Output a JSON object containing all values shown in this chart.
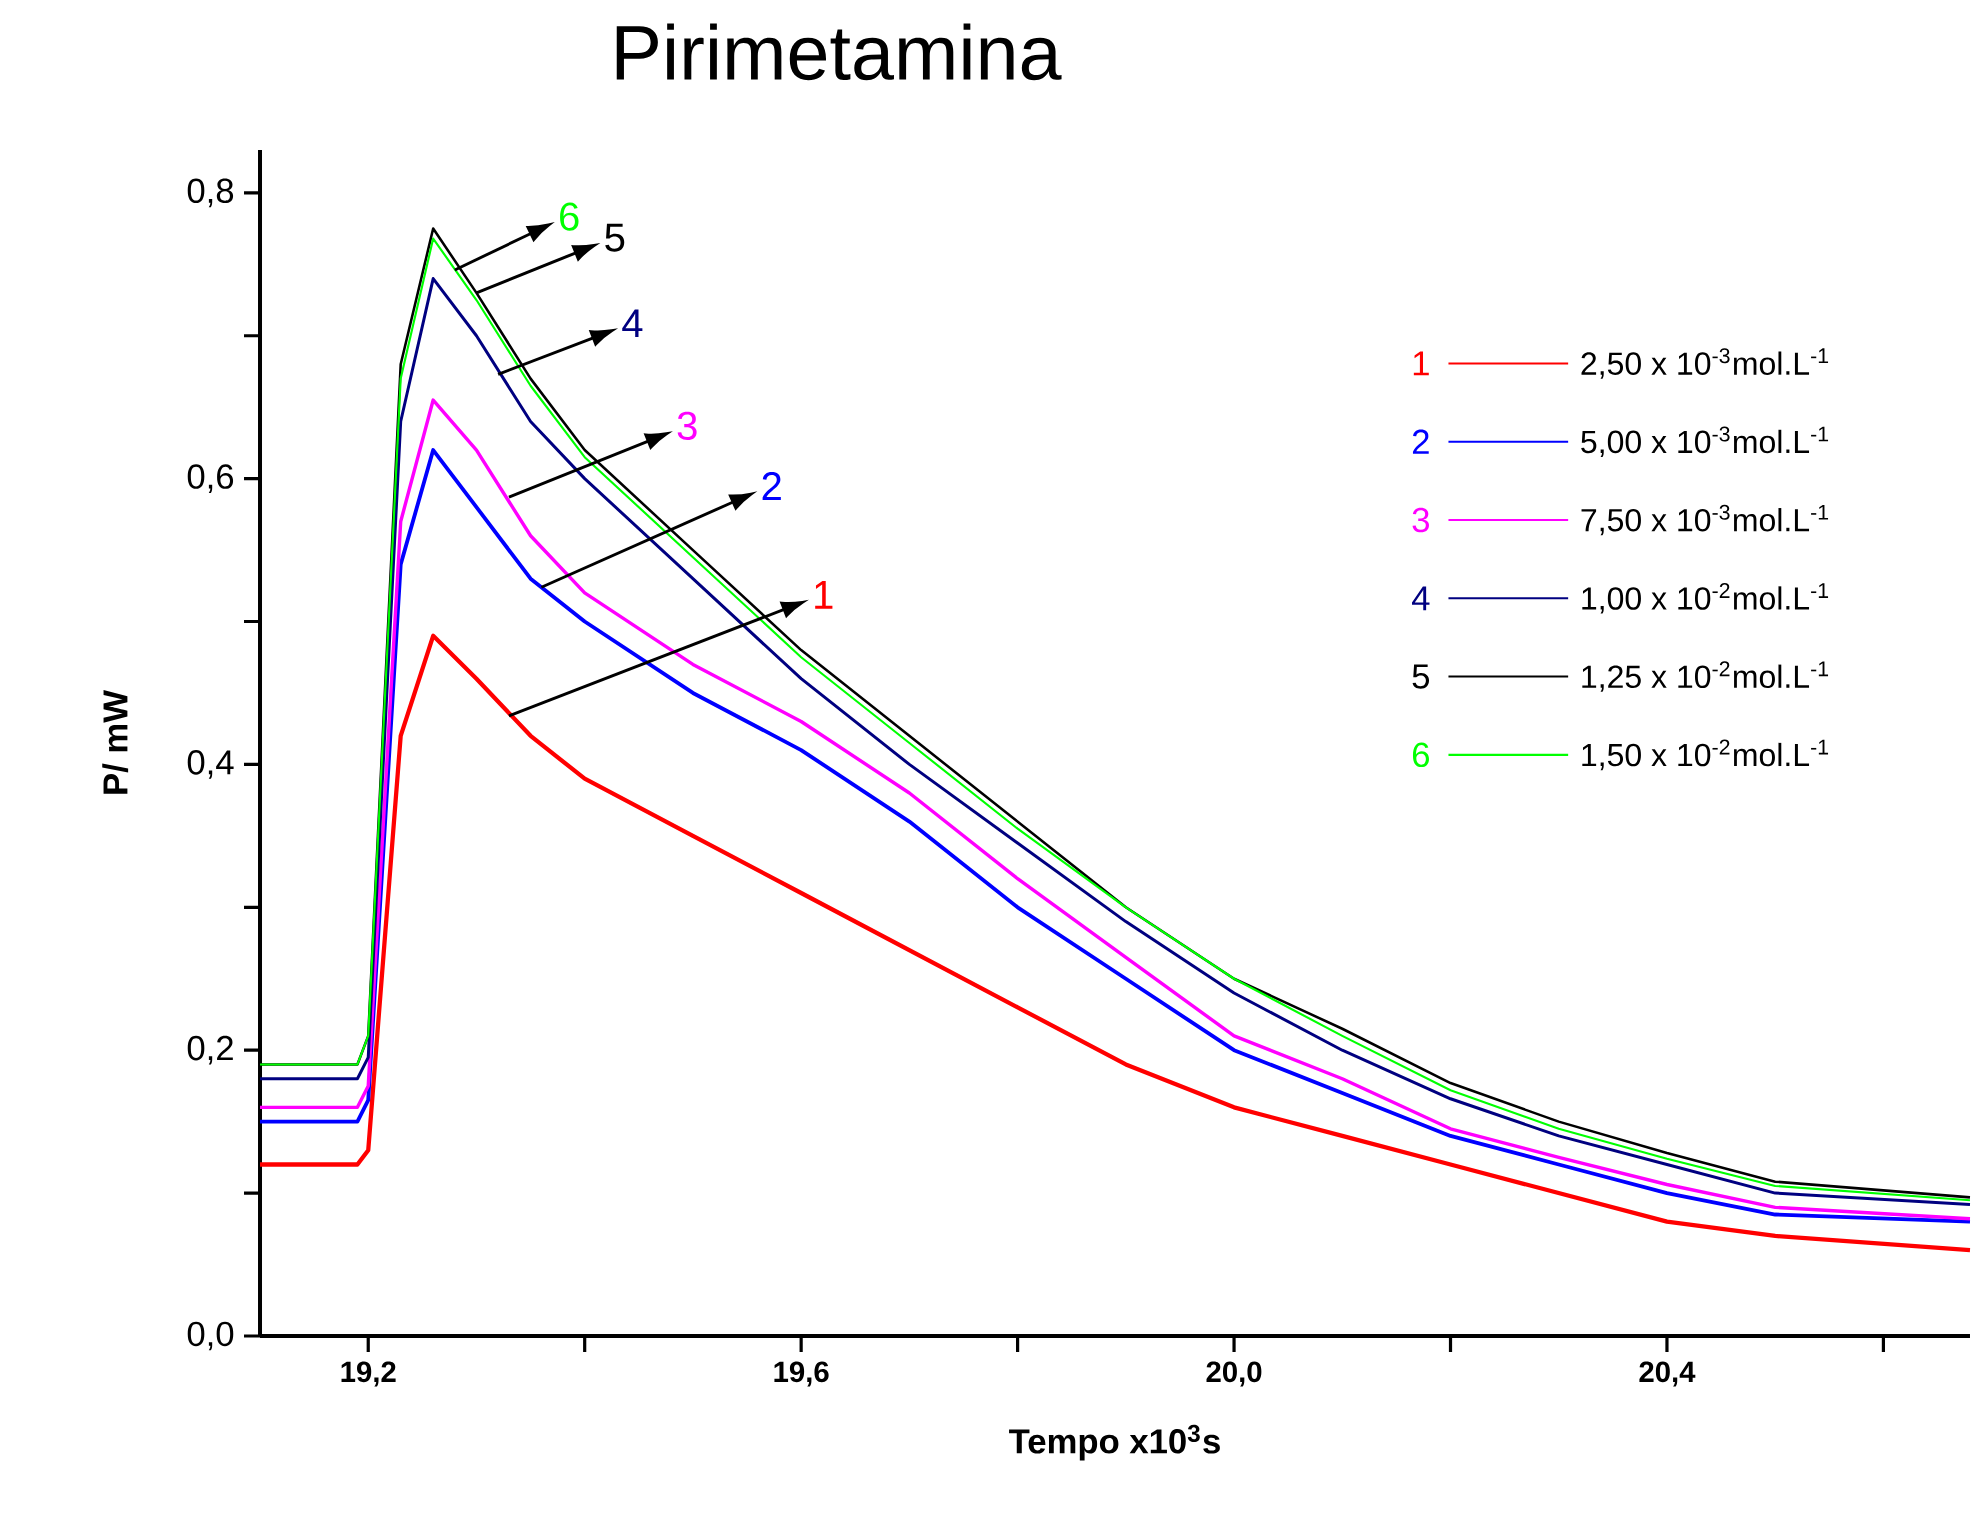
{
  "chart_data": {
    "type": "line",
    "title": "Pirimetamina",
    "xlabel": "Tempo x10$^{3}$s",
    "ylabel": "P/ mW",
    "x": [
      19.1,
      19.19,
      19.2,
      19.23,
      19.26,
      19.3,
      19.35,
      19.4,
      19.5,
      19.6,
      19.7,
      19.8,
      19.9,
      20.0,
      20.1,
      20.2,
      20.3,
      20.4,
      20.5,
      20.68
    ],
    "series": [
      {
        "name": "2,50 x 10$^{-3}$mol.L$^{-1}$",
        "color": "#ff0000",
        "values": [
          0.12,
          0.12,
          0.13,
          0.42,
          0.49,
          0.46,
          0.42,
          0.39,
          0.35,
          0.31,
          0.27,
          0.23,
          0.19,
          0.16,
          0.14,
          0.12,
          0.1,
          0.08,
          0.07,
          0.06
        ]
      },
      {
        "name": "5,00 x 10$^{-3}$mol.L$^{-1}$",
        "color": "#0000ff",
        "values": [
          0.15,
          0.15,
          0.165,
          0.54,
          0.62,
          0.58,
          0.53,
          0.5,
          0.45,
          0.41,
          0.36,
          0.3,
          0.25,
          0.2,
          0.17,
          0.14,
          0.12,
          0.1,
          0.085,
          0.08
        ]
      },
      {
        "name": "7,50 x 10$^{-3}$mol.L$^{-1}$",
        "color": "#ff00ff",
        "values": [
          0.16,
          0.16,
          0.175,
          0.57,
          0.655,
          0.62,
          0.56,
          0.52,
          0.47,
          0.43,
          0.38,
          0.32,
          0.265,
          0.21,
          0.18,
          0.145,
          0.125,
          0.106,
          0.09,
          0.082
        ]
      },
      {
        "name": "1,00 x 10$^{-2}$mol.L$^{-1}$",
        "color": "#000080",
        "values": [
          0.18,
          0.18,
          0.195,
          0.64,
          0.74,
          0.7,
          0.64,
          0.6,
          0.53,
          0.46,
          0.4,
          0.345,
          0.29,
          0.24,
          0.2,
          0.166,
          0.14,
          0.12,
          0.1,
          0.092
        ]
      },
      {
        "name": "1,25 x 10$^{-2}$mol.L$^{-1}$",
        "color": "#000000",
        "values": [
          0.19,
          0.19,
          0.21,
          0.68,
          0.775,
          0.73,
          0.67,
          0.62,
          0.55,
          0.48,
          0.42,
          0.36,
          0.3,
          0.25,
          0.215,
          0.177,
          0.15,
          0.128,
          0.108,
          0.097
        ]
      },
      {
        "name": "1,50 x 10$^{-2}$mol.L$^{-1}$",
        "color": "#00ff00",
        "values": [
          0.19,
          0.19,
          0.21,
          0.67,
          0.768,
          0.725,
          0.665,
          0.615,
          0.545,
          0.475,
          0.415,
          0.355,
          0.3,
          0.25,
          0.21,
          0.172,
          0.145,
          0.124,
          0.105,
          0.095
        ]
      }
    ],
    "annotations": [
      {
        "text": "1",
        "x": 19.33,
        "y": 0.434
      },
      {
        "text": "2",
        "x": 19.36,
        "y": 0.524
      },
      {
        "text": "3",
        "x": 19.33,
        "y": 0.587
      },
      {
        "text": "4",
        "x": 19.32,
        "y": 0.673
      },
      {
        "text": "5",
        "x": 19.3,
        "y": 0.73
      },
      {
        "text": "6",
        "x": 19.28,
        "y": 0.746
      }
    ],
    "xlim": [
      19.1,
      20.68
    ],
    "ylim": [
      0,
      0.83
    ],
    "xticks": [
      {
        "value": 19.2,
        "label": "19,2"
      },
      {
        "value": 19.4,
        "label": null
      },
      {
        "value": 19.6,
        "label": "19,6"
      },
      {
        "value": 19.8,
        "label": null
      },
      {
        "value": 20.0,
        "label": "20,0"
      },
      {
        "value": 20.2,
        "label": null
      },
      {
        "value": 20.4,
        "label": "20,4"
      },
      {
        "value": 20.6,
        "label": null
      }
    ],
    "yticks": [
      {
        "value": 0,
        "label": "0,0"
      },
      {
        "value": 0.1,
        "label": null
      },
      {
        "value": 0.2,
        "label": "0,2"
      },
      {
        "value": 0.3,
        "label": null
      },
      {
        "value": 0.4,
        "label": "0,4"
      },
      {
        "value": 0.5,
        "label": null
      },
      {
        "value": 0.6,
        "label": "0,6"
      },
      {
        "value": 0.7,
        "label": null
      },
      {
        "value": 0.8,
        "label": "0,8"
      }
    ],
    "legend": "top right"
  }
}
